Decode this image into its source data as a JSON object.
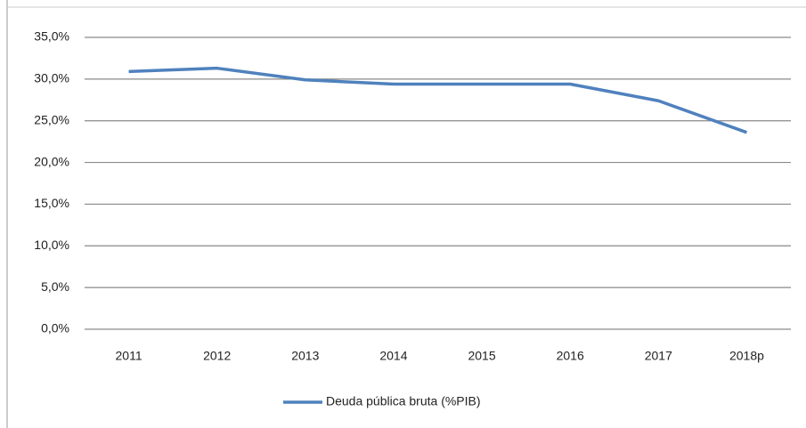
{
  "chart_data": {
    "type": "line",
    "categories": [
      "2011",
      "2012",
      "2013",
      "2014",
      "2015",
      "2016",
      "2017",
      "2018p"
    ],
    "series": [
      {
        "name": "Deuda pública bruta (%PIB)",
        "color": "#4f81bd",
        "values": [
          30.9,
          31.3,
          29.9,
          29.4,
          29.4,
          29.4,
          27.4,
          23.6
        ]
      }
    ],
    "ylim": [
      0,
      35
    ],
    "yticks": [
      {
        "value": 0,
        "label": "0,0%"
      },
      {
        "value": 5,
        "label": "5,0%"
      },
      {
        "value": 10,
        "label": "10,0%"
      },
      {
        "value": 15,
        "label": "15,0%"
      },
      {
        "value": 20,
        "label": "20,0%"
      },
      {
        "value": 25,
        "label": "25,0%"
      },
      {
        "value": 30,
        "label": "30,0%"
      },
      {
        "value": 35,
        "label": "35,0%"
      }
    ],
    "grid": true,
    "legend": "bottom"
  }
}
